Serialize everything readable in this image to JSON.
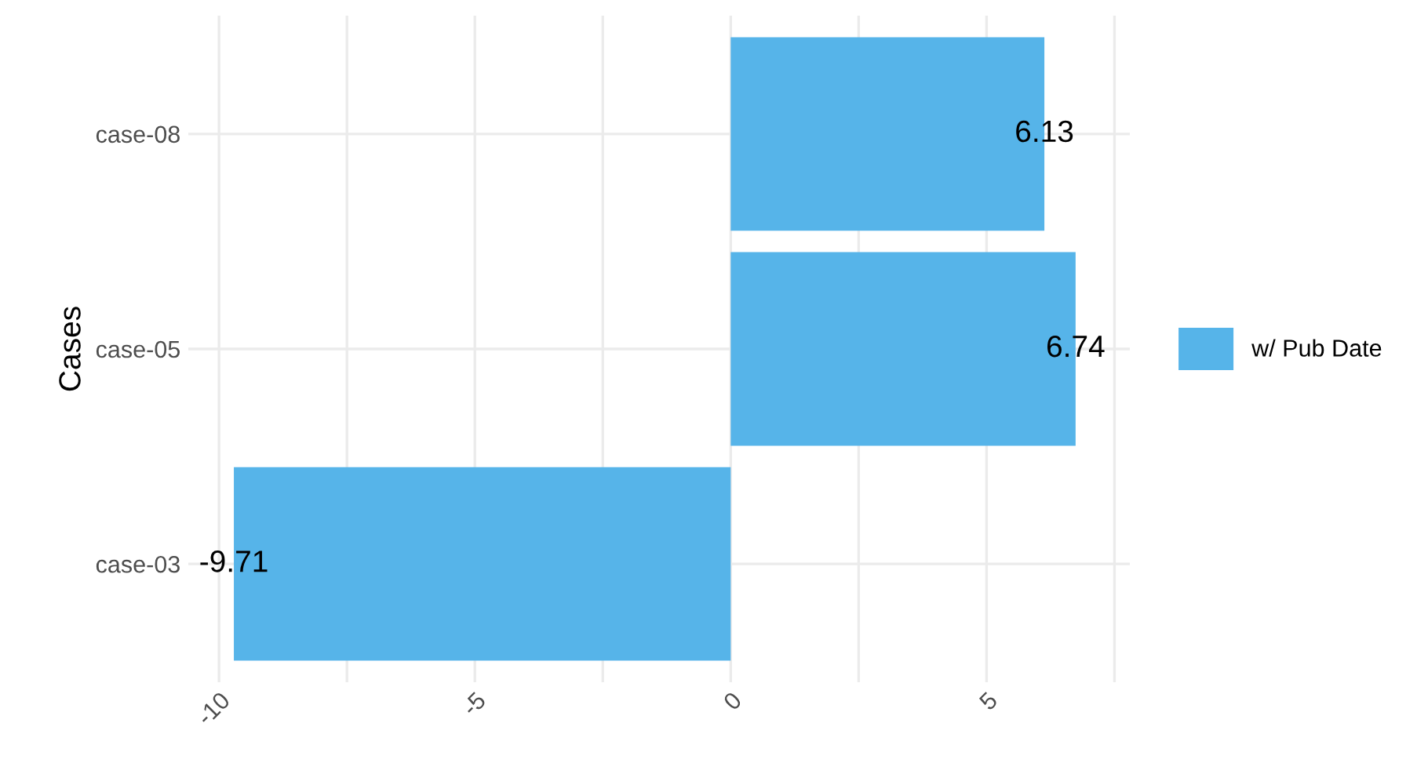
{
  "chart_data": {
    "type": "bar",
    "orientation": "horizontal",
    "ylabel": "Cases",
    "categories": [
      "case-08",
      "case-05",
      "case-03"
    ],
    "series": [
      {
        "name": "w/ Pub Date",
        "color": "#56b4e9",
        "values": [
          6.13,
          6.74,
          -9.71
        ]
      }
    ],
    "xlim": [
      -10.6,
      7.8
    ],
    "xticks": [
      -10,
      {
        "value": -7.5,
        "label": null
      },
      -5,
      {
        "value": -2.5,
        "label": null
      },
      0,
      {
        "value": 2.5,
        "label": null
      },
      5,
      {
        "value": 7.5,
        "label": null
      }
    ],
    "grid": true,
    "legend": "right",
    "data_labels": true
  }
}
